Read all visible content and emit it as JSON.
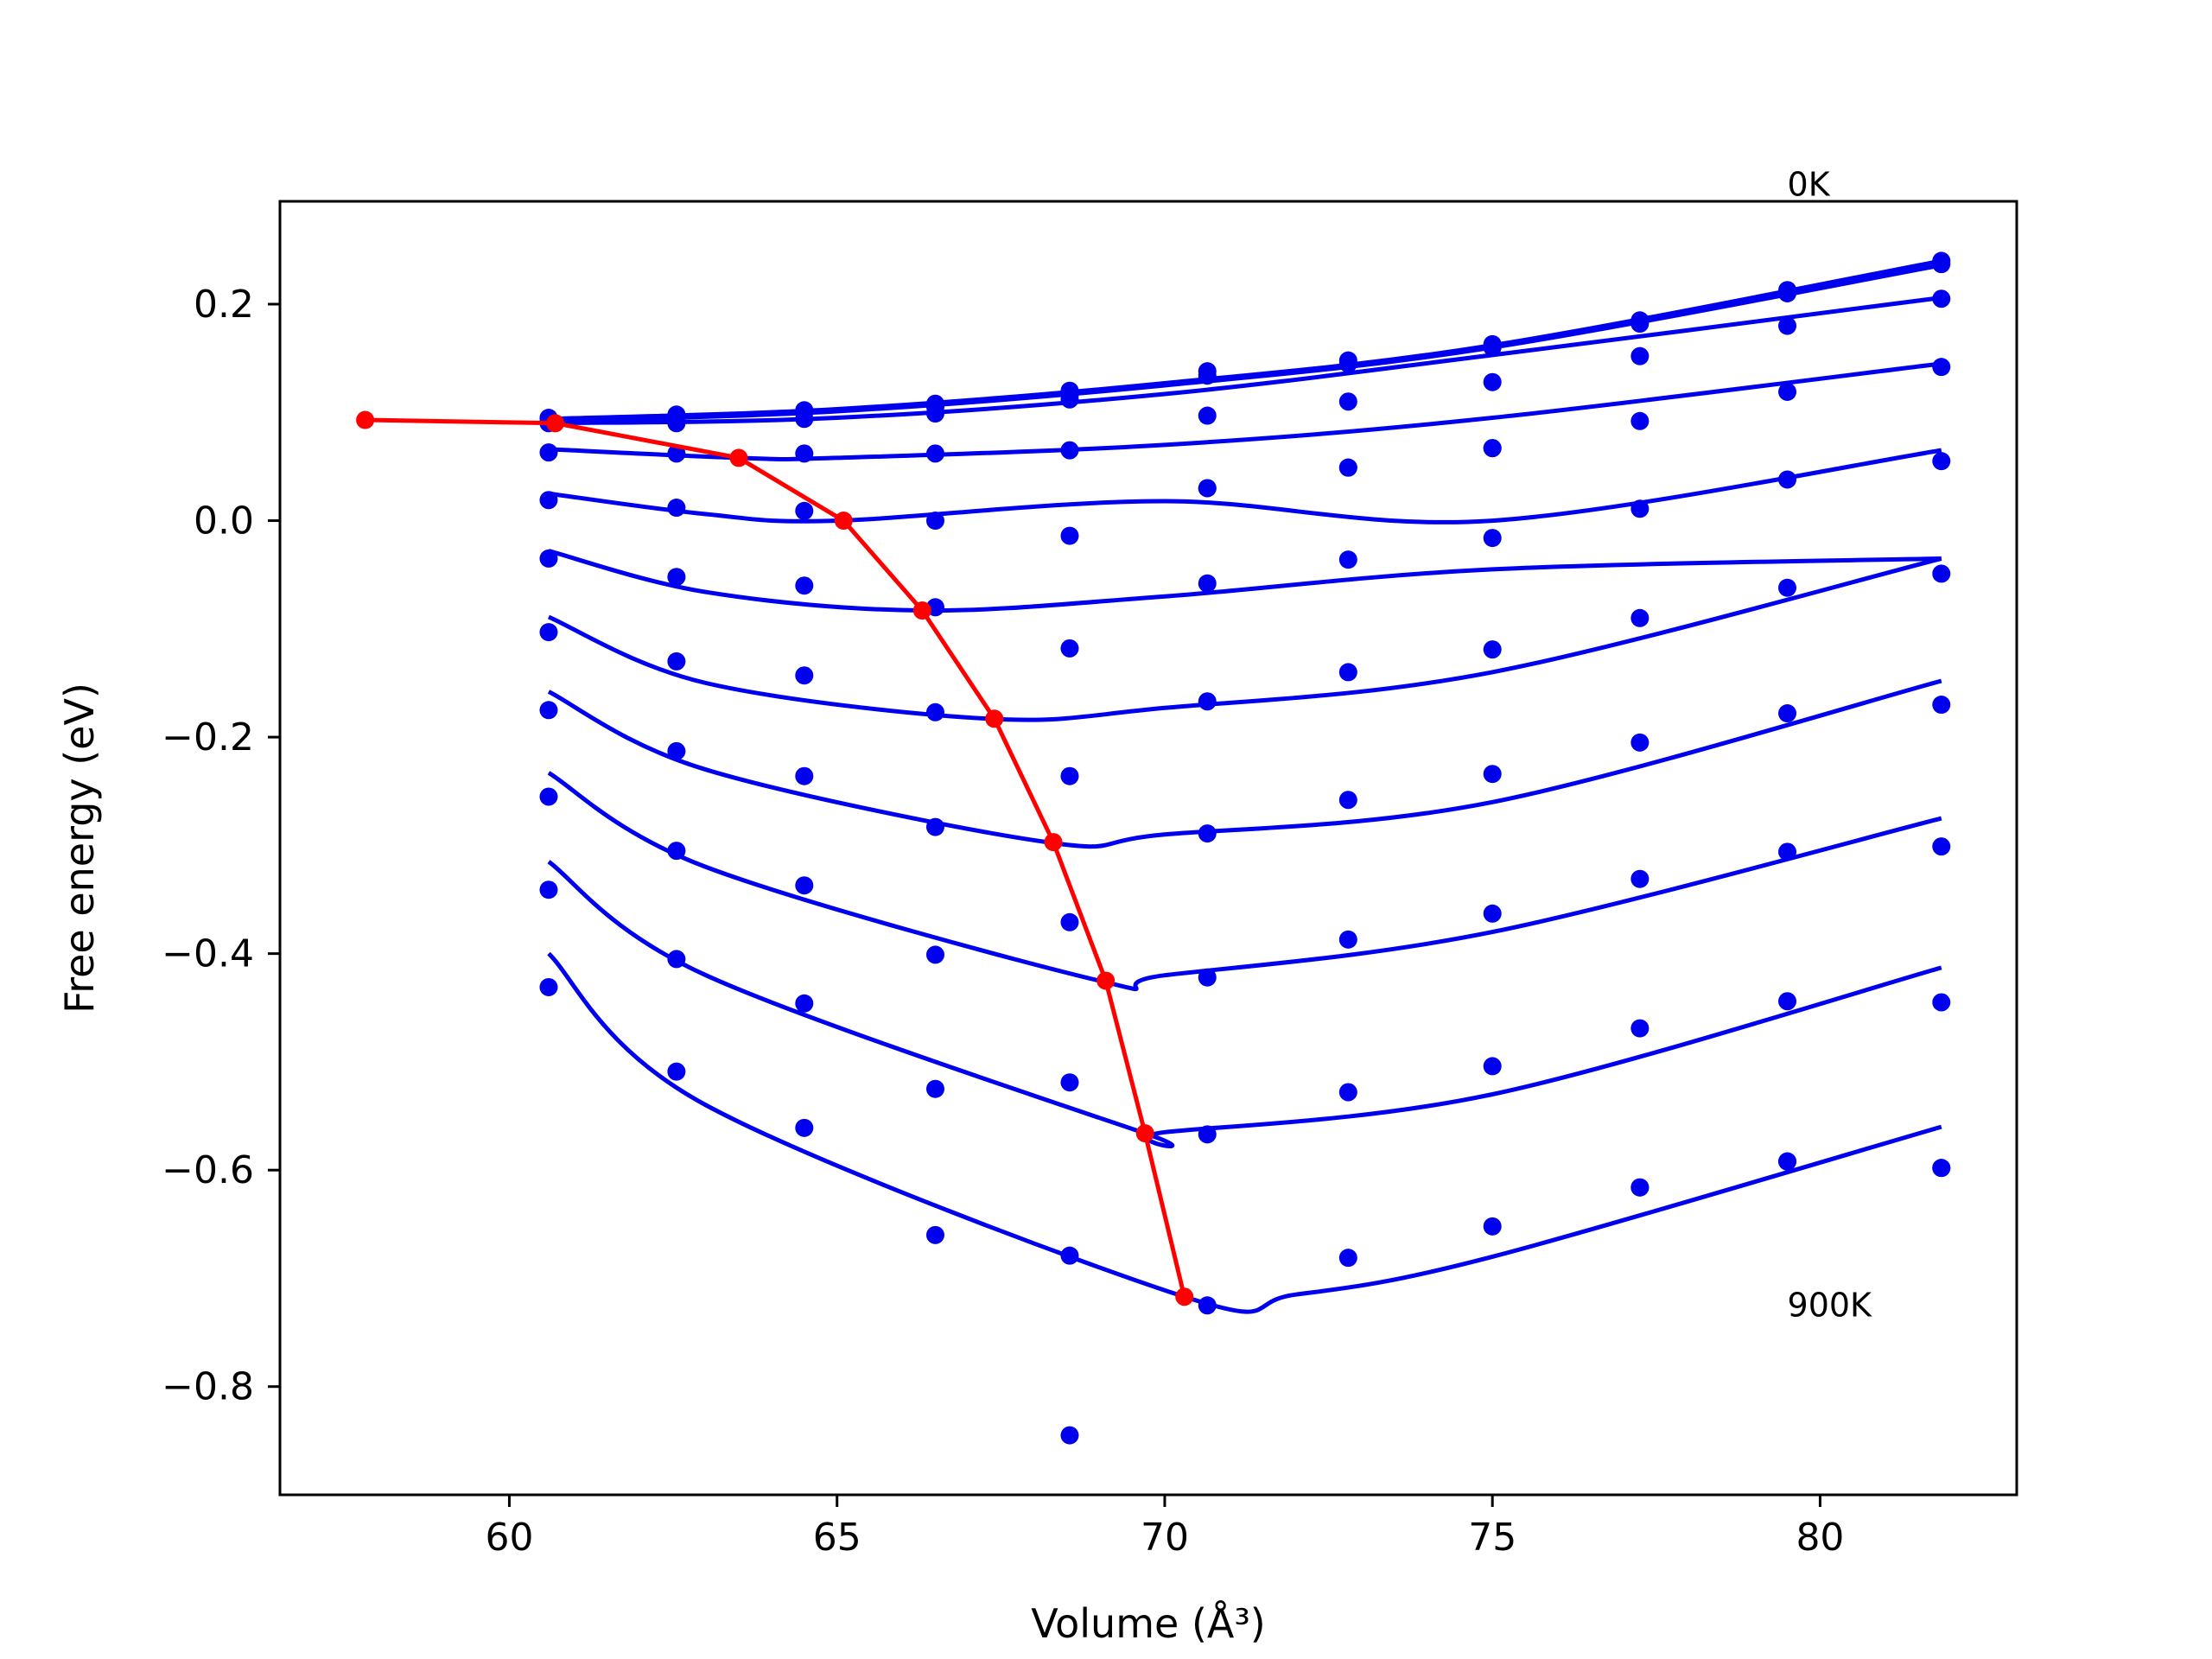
{
  "chart_data": {
    "type": "scatter",
    "xlabel": "Volume (Å³)",
    "ylabel": "Free energy (eV)",
    "xlim": [
      56.5,
      83.0
    ],
    "ylim": [
      -0.9,
      0.295
    ],
    "xticks": [
      60,
      65,
      70,
      75,
      80
    ],
    "yticks": [
      0.2,
      0.0,
      -0.2,
      -0.4,
      -0.6,
      -0.8
    ],
    "grid": false,
    "legend": "none",
    "colors": {
      "points": "#0000ee",
      "fits": "#0000ee",
      "minimum_curve": "#ff0000"
    },
    "annotations": [
      {
        "text": "0K",
        "x": 79.5,
        "y": 0.3
      },
      {
        "text": "900K",
        "x": 79.5,
        "y": -0.735
      }
    ],
    "volumes": [
      60.6,
      62.55,
      64.5,
      66.5,
      68.55,
      70.65,
      72.8,
      75.0,
      77.25,
      79.5,
      81.85
    ],
    "series": [
      {
        "points": [
          0.095,
          0.098,
          0.102,
          0.108,
          0.12,
          0.138,
          0.148,
          0.163,
          0.185,
          0.213,
          0.24
        ],
        "fit": [
          [
            60.6,
            0.094
          ],
          [
            65,
            0.103
          ],
          [
            70,
            0.127
          ],
          [
            75,
            0.162
          ],
          [
            81.85,
            0.24
          ]
        ]
      },
      {
        "points": [
          0.094,
          0.096,
          0.1,
          0.105,
          0.116,
          0.134,
          0.145,
          0.16,
          0.182,
          0.21,
          0.237
        ],
        "fit": [
          [
            60.6,
            0.092
          ],
          [
            65,
            0.101
          ],
          [
            70,
            0.125
          ],
          [
            75,
            0.16
          ],
          [
            81.85,
            0.236
          ]
        ]
      },
      {
        "points": [
          0.09,
          0.09,
          0.094,
          0.099,
          0.112,
          0.097,
          0.11,
          0.128,
          0.152,
          0.18,
          0.205
        ],
        "fit": [
          [
            60.6,
            0.09
          ],
          [
            65,
            0.095
          ],
          [
            70,
            0.117
          ],
          [
            75,
            0.153
          ],
          [
            81.85,
            0.206
          ]
        ]
      },
      {
        "points": [
          0.063,
          0.062,
          0.062,
          0.062,
          0.065,
          0.03,
          0.049,
          0.067,
          0.092,
          0.119,
          0.142
        ],
        "fit": [
          [
            60.6,
            0.066
          ],
          [
            63.5,
            0.058
          ],
          [
            65,
            0.058
          ],
          [
            70,
            0.07
          ],
          [
            75,
            0.095
          ],
          [
            81.85,
            0.145
          ]
        ]
      },
      {
        "points": [
          0.019,
          0.012,
          0.009,
          0.0,
          -0.014,
          0.03,
          0.049,
          0.067,
          0.011,
          0.038,
          0.055
        ],
        "fit": [
          [
            60.6,
            0.025
          ],
          [
            63,
            0.006
          ],
          [
            65,
            0.0
          ],
          [
            70,
            0.018
          ],
          [
            75,
            0.0
          ],
          [
            81.85,
            0.065
          ]
        ]
      },
      {
        "points": [
          -0.035,
          -0.052,
          -0.06,
          -0.08,
          -0.118,
          -0.058,
          -0.036,
          -0.016,
          -0.09,
          -0.062,
          -0.049
        ],
        "fit": [
          [
            60.6,
            -0.028
          ],
          [
            63,
            -0.066
          ],
          [
            66.3,
            -0.083
          ],
          [
            70,
            -0.07
          ],
          [
            75,
            -0.045
          ],
          [
            81.85,
            -0.035
          ]
        ]
      },
      {
        "points": [
          -0.103,
          -0.13,
          -0.143,
          -0.177,
          -0.236,
          -0.167,
          -0.14,
          -0.119,
          -0.205,
          -0.178,
          -0.17
        ],
        "fit": [
          [
            60.6,
            -0.089
          ],
          [
            63,
            -0.15
          ],
          [
            67.3,
            -0.183
          ],
          [
            70,
            -0.173
          ],
          [
            75,
            -0.14
          ],
          [
            81.85,
            -0.035
          ]
        ]
      },
      {
        "points": [
          -0.175,
          -0.213,
          -0.236,
          -0.283,
          -0.371,
          -0.289,
          -0.258,
          -0.234,
          -0.331,
          -0.306,
          -0.301
        ],
        "fit": [
          [
            60.6,
            -0.158
          ],
          [
            63,
            -0.23
          ],
          [
            68.2,
            -0.297
          ],
          [
            70,
            -0.29
          ],
          [
            75,
            -0.26
          ],
          [
            81.85,
            -0.148
          ]
        ]
      },
      {
        "points": [
          -0.255,
          -0.305,
          -0.337,
          -0.401,
          -0.519,
          -0.422,
          -0.387,
          -0.363,
          -0.469,
          -0.444,
          -0.445
        ],
        "fit": [
          [
            60.6,
            -0.233
          ],
          [
            63,
            -0.32
          ],
          [
            69.0,
            -0.425
          ],
          [
            70,
            -0.42
          ],
          [
            75,
            -0.38
          ],
          [
            81.85,
            -0.275
          ]
        ]
      },
      {
        "points": [
          -0.341,
          -0.405,
          -0.446,
          -0.525,
          -0.679,
          -0.567,
          -0.528,
          -0.504,
          -0.616,
          -0.592,
          -0.598
        ],
        "fit": [
          [
            60.6,
            -0.315
          ],
          [
            63,
            -0.42
          ],
          [
            69.7,
            -0.566
          ],
          [
            70,
            -0.565
          ],
          [
            75,
            -0.53
          ],
          [
            81.85,
            -0.413
          ]
        ]
      },
      {
        "points": [
          -0.431,
          -0.509,
          -0.561,
          -0.66,
          -0.845,
          -0.725,
          -0.681,
          -0.652,
          -0.616,
          -0.592,
          -0.598
        ],
        "fit": [
          [
            60.6,
            -0.4
          ],
          [
            63,
            -0.54
          ],
          [
            70.3,
            -0.717
          ],
          [
            72,
            -0.715
          ],
          [
            75,
            -0.68
          ],
          [
            81.85,
            -0.56
          ]
        ]
      }
    ],
    "minimum_curve": [
      [
        57.8,
        0.093
      ],
      [
        60.7,
        0.09
      ],
      [
        63.5,
        0.058
      ],
      [
        65.1,
        0.0
      ],
      [
        66.3,
        -0.083
      ],
      [
        67.4,
        -0.183
      ],
      [
        68.3,
        -0.297
      ],
      [
        69.1,
        -0.425
      ],
      [
        69.7,
        -0.566
      ],
      [
        70.3,
        -0.717
      ]
    ]
  }
}
